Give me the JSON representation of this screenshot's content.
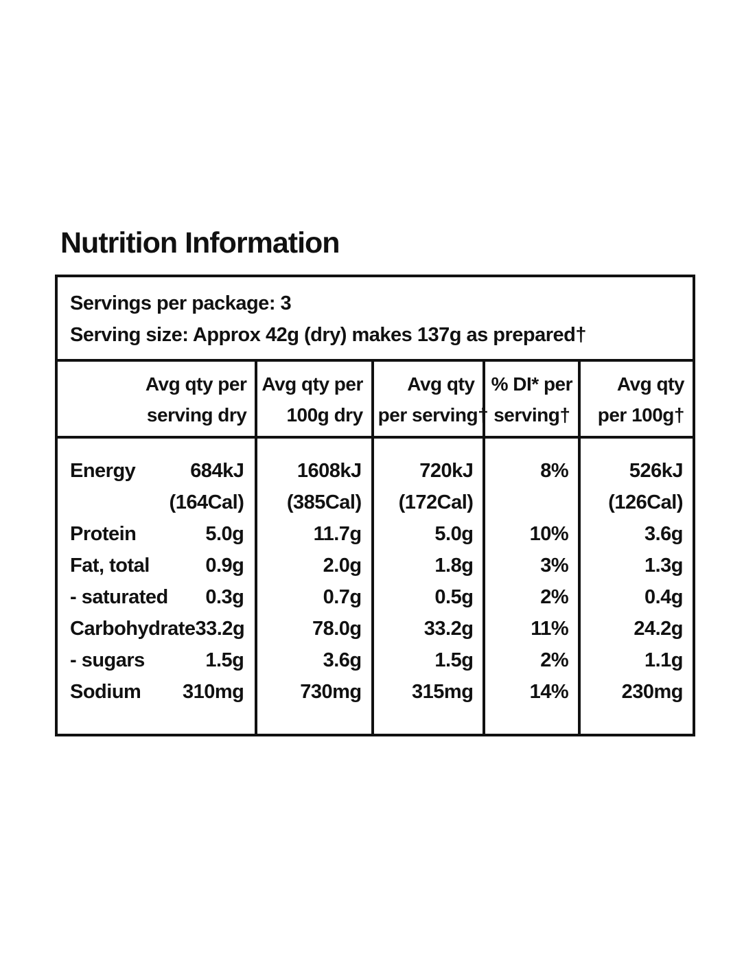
{
  "page": {
    "background": "#ffffff",
    "text_color": "#111111",
    "border_color": "#111111"
  },
  "title": "Nutrition Information",
  "panel": {
    "serving_info": {
      "servings_per_package": "Servings per package: 3",
      "serving_size": "Serving size: Approx 42g (dry) makes 137g as prepared†"
    },
    "column_headers": [
      {
        "line1": "Avg qty per",
        "line2": "serving dry"
      },
      {
        "line1": "Avg qty per",
        "line2": "100g dry"
      },
      {
        "line1": "Avg qty",
        "line2": "per serving†"
      },
      {
        "line1": "% DI* per",
        "line2": "serving†"
      },
      {
        "line1": "Avg qty",
        "line2": "per 100g†"
      }
    ],
    "rows": [
      {
        "label": "Energy",
        "serving_dry": "684kJ",
        "per_100g_dry": "1608kJ",
        "per_serving": "720kJ",
        "di_per_serving": "8%",
        "per_100g": "526kJ"
      },
      {
        "label": "",
        "serving_dry": "(164Cal)",
        "per_100g_dry": "(385Cal)",
        "per_serving": "(172Cal)",
        "di_per_serving": "",
        "per_100g": "(126Cal)"
      },
      {
        "label": "Protein",
        "serving_dry": "5.0g",
        "per_100g_dry": "11.7g",
        "per_serving": "5.0g",
        "di_per_serving": "10%",
        "per_100g": "3.6g"
      },
      {
        "label": "Fat, total",
        "serving_dry": "0.9g",
        "per_100g_dry": "2.0g",
        "per_serving": "1.8g",
        "di_per_serving": "3%",
        "per_100g": "1.3g"
      },
      {
        "label": "- saturated",
        "serving_dry": "0.3g",
        "per_100g_dry": "0.7g",
        "per_serving": "0.5g",
        "di_per_serving": "2%",
        "per_100g": "0.4g"
      },
      {
        "label": "Carbohydrate",
        "serving_dry": "33.2g",
        "per_100g_dry": "78.0g",
        "per_serving": "33.2g",
        "di_per_serving": "11%",
        "per_100g": "24.2g"
      },
      {
        "label": "- sugars",
        "serving_dry": "1.5g",
        "per_100g_dry": "3.6g",
        "per_serving": "1.5g",
        "di_per_serving": "2%",
        "per_100g": "1.1g"
      },
      {
        "label": "Sodium",
        "serving_dry": "310mg",
        "per_100g_dry": "730mg",
        "per_serving": "315mg",
        "di_per_serving": "14%",
        "per_100g": "230mg"
      }
    ]
  }
}
